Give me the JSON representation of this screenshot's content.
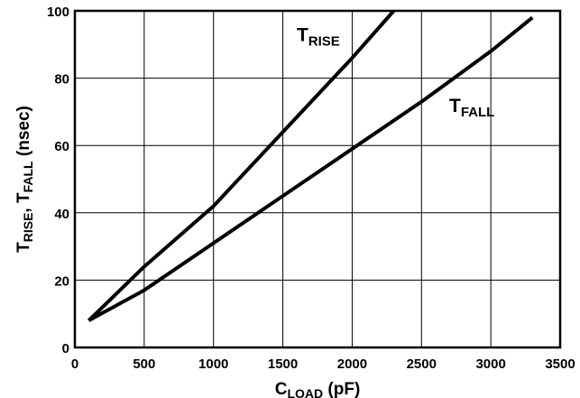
{
  "chart_data": {
    "type": "line",
    "title": "",
    "xlabel": {
      "main": "C",
      "sub": "LOAD",
      "suffix": " (pF)"
    },
    "ylabel": {
      "parts": [
        {
          "main": "T",
          "sub": "RISE"
        },
        {
          "main": ", T",
          "sub": "FALL"
        },
        {
          "main": " (nsec)",
          "sub": ""
        }
      ]
    },
    "xlim": [
      0,
      3500
    ],
    "ylim": [
      0,
      100
    ],
    "x_ticks": [
      0,
      500,
      1000,
      1500,
      2000,
      2500,
      3000,
      3500
    ],
    "x_tick_labels": [
      "0",
      "500",
      "1000",
      "1500",
      "2000",
      "2500",
      "3000",
      "3500"
    ],
    "y_ticks": [
      0,
      20,
      40,
      60,
      80,
      100
    ],
    "y_tick_labels": [
      "0",
      "20",
      "40",
      "60",
      "80",
      "100"
    ],
    "grid": true,
    "series": [
      {
        "name": "T_RISE",
        "label_main": "T",
        "label_sub": "RISE",
        "label_at": [
          1600,
          91
        ],
        "color": "#000000",
        "x": [
          100,
          500,
          1000,
          1500,
          2000,
          2300
        ],
        "y": [
          8,
          24,
          42,
          64,
          86,
          100
        ]
      },
      {
        "name": "T_FALL",
        "label_main": "T",
        "label_sub": "FALL",
        "label_at": [
          2700,
          70
        ],
        "color": "#000000",
        "x": [
          100,
          500,
          1000,
          1500,
          2000,
          2500,
          3000,
          3300
        ],
        "y": [
          8,
          17,
          31,
          45,
          59,
          73,
          88,
          98
        ]
      }
    ]
  }
}
